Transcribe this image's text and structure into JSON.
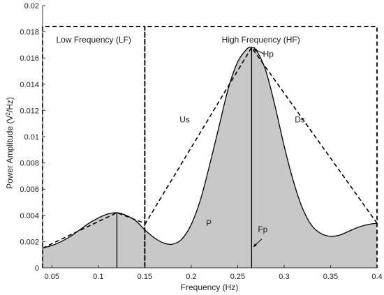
{
  "chart_data": {
    "type": "area",
    "xlabel": "Frequency (Hz)",
    "ylabel_main": "Power Amplitude (V",
    "ylabel_sup": "2",
    "ylabel_tail": "/Hz)",
    "xlim": [
      0.04,
      0.4
    ],
    "ylim": [
      0,
      0.02
    ],
    "xticks": [
      0.05,
      0.1,
      0.15,
      0.2,
      0.25,
      0.3,
      0.35,
      0.4
    ],
    "xtick_labels": [
      "0.05",
      "0.1",
      "0.15",
      "0.2",
      "0.25",
      "0.3",
      "0.35",
      "0.4"
    ],
    "yticks": [
      0,
      0.002,
      0.004,
      0.006,
      0.008,
      0.01,
      0.012,
      0.014,
      0.016,
      0.018,
      0.02
    ],
    "ytick_labels": [
      "0",
      "0.002",
      "0.004",
      "0.006",
      "0.008",
      "0.01",
      "0.012",
      "0.014",
      "0.016",
      "0.018",
      "0.02"
    ],
    "psd": {
      "x": [
        0.04,
        0.05,
        0.06,
        0.07,
        0.08,
        0.09,
        0.1,
        0.11,
        0.12,
        0.13,
        0.14,
        0.15,
        0.16,
        0.17,
        0.18,
        0.19,
        0.2,
        0.21,
        0.22,
        0.23,
        0.24,
        0.25,
        0.26,
        0.265,
        0.27,
        0.28,
        0.29,
        0.3,
        0.31,
        0.32,
        0.33,
        0.34,
        0.35,
        0.36,
        0.37,
        0.38,
        0.39,
        0.4
      ],
      "y": [
        0.0015,
        0.0017,
        0.002,
        0.0024,
        0.0029,
        0.0034,
        0.0038,
        0.0041,
        0.0042,
        0.004,
        0.0036,
        0.0029,
        0.0023,
        0.0019,
        0.0018,
        0.0022,
        0.0033,
        0.0052,
        0.0079,
        0.0108,
        0.0137,
        0.0157,
        0.0167,
        0.0168,
        0.0166,
        0.0151,
        0.0124,
        0.0093,
        0.0066,
        0.0045,
        0.0032,
        0.0026,
        0.0024,
        0.0025,
        0.0028,
        0.0031,
        0.0033,
        0.0034
      ]
    },
    "boxes": [
      {
        "label": "Low Frequency (LF)",
        "x": [
          0.04,
          0.15
        ],
        "y_top": 0.0184
      },
      {
        "label": "High Frequency (HF)",
        "x": [
          0.15,
          0.4
        ],
        "y_top": 0.0184
      }
    ],
    "triangles": [
      {
        "points": [
          [
            0.04,
            0.0015
          ],
          [
            0.12,
            0.0042
          ],
          [
            0.15,
            0.0034
          ]
        ]
      },
      {
        "points": [
          [
            0.15,
            0.0033
          ],
          [
            0.265,
            0.0168
          ],
          [
            0.4,
            0.0034
          ]
        ]
      }
    ],
    "peak_lines": [
      {
        "x": 0.12,
        "y": 0.0042
      },
      {
        "x": 0.265,
        "y": 0.0168
      }
    ],
    "annotations": [
      {
        "text": "Hp",
        "x": 0.283,
        "y": 0.0161
      },
      {
        "text": "Us",
        "x": 0.193,
        "y": 0.0111
      },
      {
        "text": "Ds",
        "x": 0.317,
        "y": 0.0111
      },
      {
        "text": "P",
        "x": 0.219,
        "y": 0.0032
      },
      {
        "text": "Fp",
        "x": 0.277,
        "y": 0.0027
      }
    ],
    "arrows": [
      {
        "from": [
          0.279,
          0.0163
        ],
        "to": [
          0.267,
          0.0167
        ]
      },
      {
        "from": [
          0.276,
          0.0022
        ],
        "to": [
          0.267,
          0.0016
        ]
      }
    ]
  }
}
